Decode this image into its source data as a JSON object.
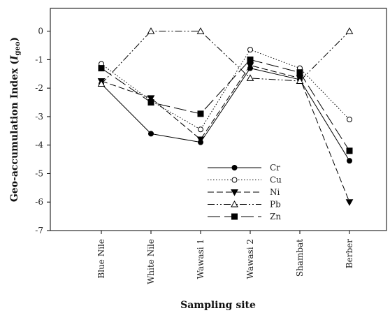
{
  "chart_data": {
    "type": "line",
    "title": "",
    "xlabel": "Sampling site",
    "ylabel": "Geo-accumulation Index (",
    "ylabel_italic": "I",
    "ylabel_sub": "geo",
    "ylabel_close": ")",
    "categories": [
      "Blue Nile",
      "White Nile",
      "Wawasi 1",
      "Wawasi 2",
      "Shambat",
      "Berber"
    ],
    "ylim": [
      -7,
      0.8
    ],
    "yticks": [
      "0",
      "-1",
      "-2",
      "-3",
      "-4",
      "-5",
      "-6",
      "-7"
    ],
    "ytick_values": [
      0,
      -1,
      -2,
      -3,
      -4,
      -5,
      -6,
      -7
    ],
    "grid": false,
    "legend_position": "lower-center",
    "series": [
      {
        "name": "Cr",
        "values": [
          -1.85,
          -3.6,
          -3.9,
          -1.3,
          -1.7,
          -4.55
        ],
        "marker": "circle-filled",
        "dash": "solid"
      },
      {
        "name": "Cu",
        "values": [
          -1.15,
          -2.45,
          -3.45,
          -0.65,
          -1.3,
          -3.1
        ],
        "marker": "circle-open",
        "dash": "dotted"
      },
      {
        "name": "Ni",
        "values": [
          -1.75,
          -2.35,
          -3.8,
          -1.2,
          -1.65,
          -6.0
        ],
        "marker": "triangle-down-filled",
        "dash": "dashed"
      },
      {
        "name": "Pb",
        "values": [
          -1.85,
          0.0,
          0.0,
          -1.65,
          -1.75,
          0.0
        ],
        "marker": "triangle-up-open",
        "dash": "dashdotdot"
      },
      {
        "name": "Zn",
        "values": [
          -1.3,
          -2.5,
          -2.9,
          -1.0,
          -1.45,
          -4.2
        ],
        "marker": "square-filled",
        "dash": "longdash"
      }
    ]
  }
}
